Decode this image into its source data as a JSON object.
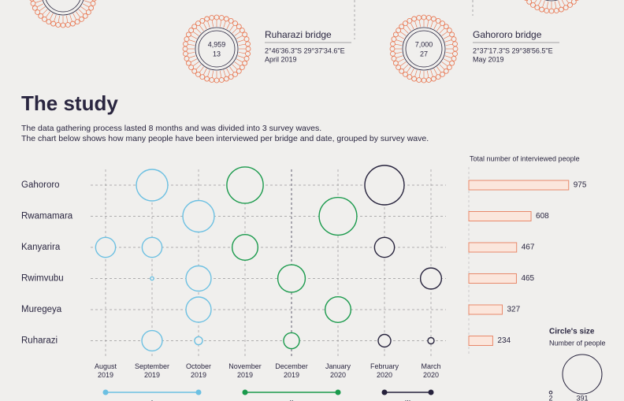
{
  "header": {
    "bridges": [
      {
        "name": "Ruharazi bridge",
        "coordinates": "2°46'36.3\"S 29°37'34.6\"E",
        "date": "April 2019",
        "people": "4,959",
        "count": "13"
      },
      {
        "name": "Gahororo bridge",
        "coordinates": "2°37'17.3\"S 29°38'56.5\"E",
        "date": "May 2019",
        "people": "7,000",
        "count": "27"
      }
    ],
    "title": "The study",
    "text": [
      "The data gathering process lasted 8 months and was divided into 3 survey waves.",
      "The chart below shows how many people have been interviewed per bridge and date, grouped by survey wave."
    ]
  },
  "chart_data": [
    {
      "type": "bubble",
      "rows": [
        "Gahororo",
        "Rwamamara",
        "Kanyarira",
        "Rwimvubu",
        "Muregeya",
        "Ruharazi"
      ],
      "categories": [
        "August 2019",
        "September 2019",
        "October 2019",
        "November 2019",
        "December 2019",
        "January 2020",
        "February 2020",
        "March 2020"
      ],
      "values": [
        [
          null,
          250,
          null,
          334,
          null,
          null,
          391,
          null
        ],
        [
          null,
          null,
          250,
          null,
          null,
          358,
          null,
          null
        ],
        [
          100,
          100,
          null,
          167,
          null,
          null,
          100,
          null
        ],
        [
          null,
          3,
          160,
          null,
          190,
          null,
          null,
          112
        ],
        [
          null,
          null,
          160,
          null,
          null,
          167,
          null,
          null
        ],
        [
          null,
          105,
          16,
          null,
          63,
          null,
          40,
          10
        ]
      ],
      "waves": [
        {
          "name": "I",
          "color": "#6cc0e2",
          "start": 0,
          "end": 2
        },
        {
          "name": "II",
          "color": "#1a9a4c",
          "start": 3,
          "end": 5
        },
        {
          "name": "III",
          "color": "#26223c",
          "start": 6,
          "end": 7
        }
      ],
      "size_legend": {
        "title": "Circle's size",
        "subtitle": "Number of people",
        "values": [
          2,
          391
        ]
      }
    },
    {
      "type": "bar",
      "title": "Total number of interviewed people",
      "values": [
        975,
        608,
        467,
        465,
        327,
        234
      ],
      "color": "#e8886a"
    }
  ]
}
